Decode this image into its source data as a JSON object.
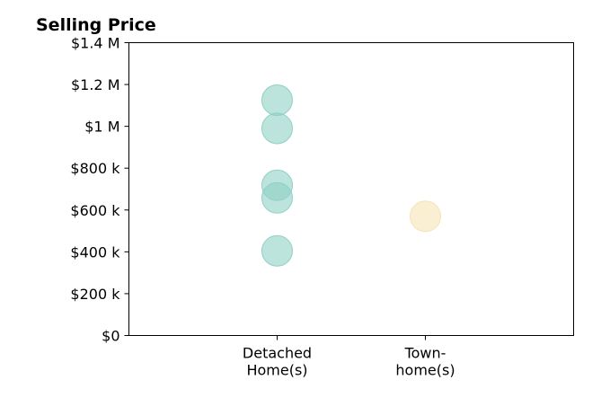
{
  "chart_data": {
    "type": "scatter",
    "title": "Selling Price",
    "xlabel": "",
    "ylabel": "",
    "categories": [
      "Detached\nHome(s)",
      "Town-\nhome(s)"
    ],
    "x_range": [
      -1,
      2
    ],
    "ylim": [
      0,
      1400000
    ],
    "y_ticks": [
      {
        "value": 0,
        "label": "$0"
      },
      {
        "value": 200000,
        "label": "$200 k"
      },
      {
        "value": 400000,
        "label": "$400 k"
      },
      {
        "value": 600000,
        "label": "$600 k"
      },
      {
        "value": 800000,
        "label": "$800 k"
      },
      {
        "value": 1000000,
        "label": "$1 M"
      },
      {
        "value": 1200000,
        "label": "$1.2 M"
      },
      {
        "value": 1400000,
        "label": "$1.4 M"
      }
    ],
    "series": [
      {
        "category_index": 0,
        "color": "#8fd0c5",
        "values": [
          1125000,
          990000,
          718000,
          658000,
          405000
        ]
      },
      {
        "category_index": 1,
        "color": "#f7e2b5",
        "values": [
          570000
        ]
      }
    ],
    "grid": false,
    "legend": "none"
  }
}
